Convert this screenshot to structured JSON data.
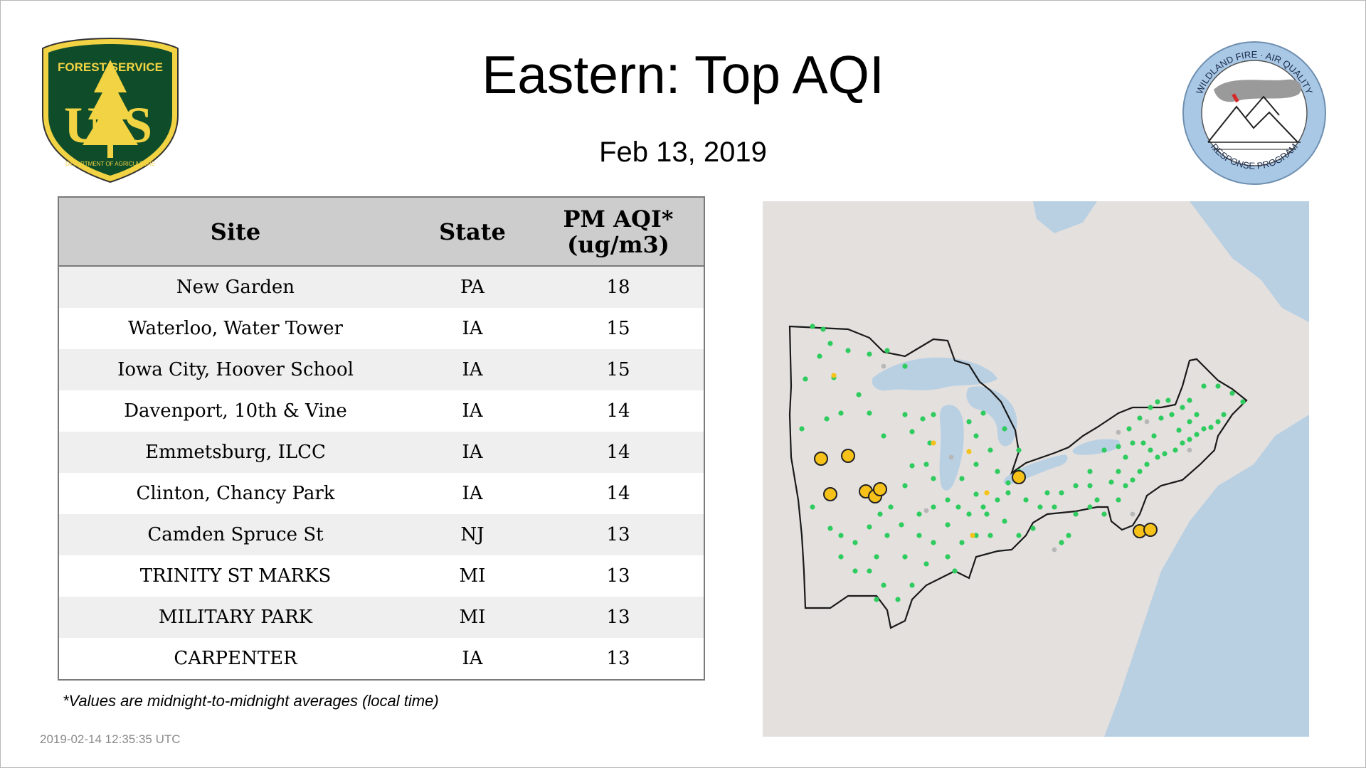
{
  "header": {
    "title": "Eastern: Top AQI",
    "date": "Feb 13, 2019"
  },
  "logos": {
    "usfs": {
      "top_text": "FOREST SERVICE",
      "letters_left": "U",
      "letters_right": "S",
      "bottom_text": "DEPARTMENT OF AGRICULTURE",
      "icon": "pine-tree-icon",
      "colors": {
        "shield": "#0f4d2a",
        "gold": "#f2d343"
      }
    },
    "wfaq": {
      "top_text": "WILDLAND FIRE · AIR QUALITY",
      "bottom_text": "RESPONSE PROGRAM",
      "icon": "mountain-smoke-icon",
      "colors": {
        "ring": "#a9c8e6",
        "accent": "#d62828"
      }
    }
  },
  "table": {
    "headers": {
      "site": "Site",
      "state": "State",
      "aqi_line1": "PM AQI*",
      "aqi_line2": "(ug/m3)"
    },
    "rows": [
      {
        "site": "New Garden",
        "state": "PA",
        "aqi": "18"
      },
      {
        "site": "Waterloo, Water Tower",
        "state": "IA",
        "aqi": "15"
      },
      {
        "site": "Iowa City, Hoover School",
        "state": "IA",
        "aqi": "15"
      },
      {
        "site": "Davenport, 10th & Vine",
        "state": "IA",
        "aqi": "14"
      },
      {
        "site": "Emmetsburg, ILCC",
        "state": "IA",
        "aqi": "14"
      },
      {
        "site": "Clinton, Chancy Park",
        "state": "IA",
        "aqi": "14"
      },
      {
        "site": "Camden Spruce St",
        "state": "NJ",
        "aqi": "13"
      },
      {
        "site": "TRINITY ST MARKS",
        "state": "MI",
        "aqi": "13"
      },
      {
        "site": "MILITARY PARK",
        "state": "MI",
        "aqi": "13"
      },
      {
        "site": "CARPENTER",
        "state": "IA",
        "aqi": "13"
      }
    ]
  },
  "footnote": "*Values are midnight-to-midnight averages (local time)",
  "timestamp": "2019-02-14 12:35:35 UTC",
  "map": {
    "colors": {
      "land": "#e4e0de",
      "water": "#b9d0e3",
      "border": "#1a1a1a",
      "good": "#2ecc5e",
      "moderate": "#f6c21a",
      "no_data": "#b7b7b7"
    }
  }
}
